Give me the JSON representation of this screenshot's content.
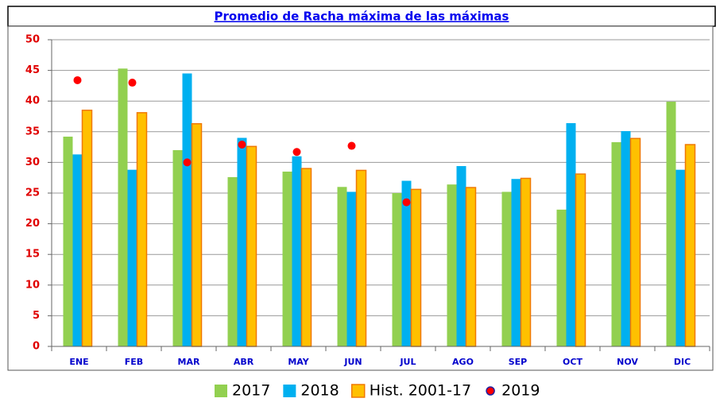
{
  "chart_data": {
    "type": "bar",
    "title": "Promedio de Racha máxima de las máximas",
    "categories": [
      "ENE",
      "FEB",
      "MAR",
      "ABR",
      "MAY",
      "JUN",
      "JUL",
      "AGO",
      "SEP",
      "OCT",
      "NOV",
      "DIC"
    ],
    "series": [
      {
        "name": "2017",
        "color": "#92d050",
        "values": [
          34.2,
          45.3,
          32.0,
          27.6,
          28.5,
          26.0,
          25.0,
          26.4,
          25.2,
          22.3,
          33.3,
          39.9
        ]
      },
      {
        "name": "2018",
        "color": "#00b0f0",
        "values": [
          31.3,
          28.8,
          44.5,
          34.0,
          31.0,
          25.2,
          27.0,
          29.4,
          27.3,
          36.4,
          35.1,
          28.8
        ]
      },
      {
        "name": "Hist. 2001-17",
        "color": "#ffc000",
        "edge": "#f07800",
        "values": [
          38.5,
          38.1,
          36.3,
          32.6,
          29.0,
          28.7,
          25.6,
          25.9,
          27.4,
          28.1,
          33.9,
          32.9
        ]
      },
      {
        "name": "2019",
        "type": "scatter",
        "color": "#ff0000",
        "edge": "#2020a0",
        "values": [
          43.4,
          43.0,
          30.0,
          32.9,
          31.7,
          32.7,
          23.5,
          null,
          null,
          null,
          null,
          null
        ]
      }
    ],
    "ylim": [
      0,
      50
    ],
    "yticks": [
      0,
      5,
      10,
      15,
      20,
      25,
      30,
      35,
      40,
      45,
      50
    ],
    "grid": true,
    "legend": "bottom"
  }
}
